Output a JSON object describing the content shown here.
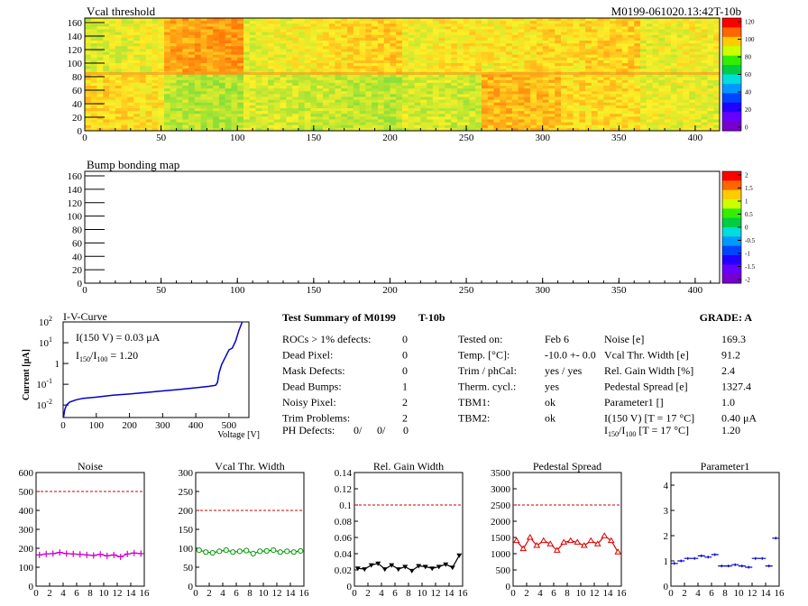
{
  "vcal_map": {
    "title": "Vcal threshold",
    "module_label": "M0199-061020.13:42T-10b",
    "x_ticks": [
      "0",
      "50",
      "100",
      "150",
      "200",
      "250",
      "300",
      "350",
      "400"
    ],
    "y_ticks": [
      "0",
      "20",
      "40",
      "60",
      "80",
      "100",
      "120",
      "140",
      "160"
    ],
    "colorbar_ticks": [
      "0",
      "20",
      "40",
      "60",
      "80",
      "100",
      "120"
    ]
  },
  "bump_map": {
    "title": "Bump bonding map",
    "x_ticks": [
      "0",
      "50",
      "100",
      "150",
      "200",
      "250",
      "300",
      "350",
      "400"
    ],
    "y_ticks": [
      "0",
      "20",
      "40",
      "60",
      "80",
      "100",
      "120",
      "140",
      "160"
    ],
    "colorbar_ticks": [
      "2",
      "1.5",
      "1",
      "0.5",
      "0",
      "-0.5",
      "-1",
      "-1.5",
      "-2"
    ]
  },
  "iv": {
    "title": "I-V-Curve",
    "ylabel": "Current [",
    "ylabel_mu": "μ",
    "ylabel_end": "A]",
    "xlabel": "Voltage [V]",
    "annot1": "I(150 V) = 0.03 μA",
    "annot2_a": "I",
    "annot2_sub1": "150",
    "annot2_b": "/I",
    "annot2_sub2": "100",
    "annot2_c": " =  1.20",
    "x_ticks": [
      "0",
      "100",
      "200",
      "300",
      "400",
      "500"
    ],
    "y_ticks_base": [
      "10",
      "10",
      "10",
      "10"
    ],
    "y_ticks_exp": [
      "2",
      "1",
      "-1",
      "-2"
    ],
    "y_tick_one": "1"
  },
  "summary": {
    "title": "Test Summary of M0199",
    "test": "T-10b",
    "grade": "GRADE:  A",
    "left_rows": [
      {
        "label": "ROCs > 1% defects:",
        "value": "0"
      },
      {
        "label": "Dead Pixel:",
        "value": "0"
      },
      {
        "label": "Mask Defects:",
        "value": "0"
      },
      {
        "label": "Dead Bumps:",
        "value": "1"
      },
      {
        "label": "Noisy Pixel:",
        "value": "2"
      },
      {
        "label": "Trim Problems:",
        "value": "2"
      }
    ],
    "ph_label": "PH Defects:",
    "ph_values": [
      "0/",
      "0/",
      "0"
    ],
    "ph_colors": [
      "#000000",
      "#ff0000",
      "#0000ff"
    ],
    "mid_rows": [
      {
        "label": "Tested on:",
        "value": "Feb 6"
      },
      {
        "label": "Temp. [°C]:",
        "value": "-10.0 +- 0.0"
      },
      {
        "label": "Trim / phCal:",
        "value": "yes / yes"
      },
      {
        "label": "Therm. cycl.:",
        "value": "yes"
      },
      {
        "label": "TBM1:",
        "value": "ok"
      },
      {
        "label": "TBM2:",
        "value": "ok"
      }
    ],
    "right_rows": [
      {
        "label": "Noise [e]",
        "value": "169.3"
      },
      {
        "label": "Vcal Thr. Width [e]",
        "value": "91.2"
      },
      {
        "label": "Rel. Gain Width [%]",
        "value": "2.4"
      },
      {
        "label": "Pedestal Spread [e]",
        "value": "1327.4"
      },
      {
        "label": "Parameter1 []",
        "value": "1.0"
      },
      {
        "label": "I(150 V) [T = 17 °C]",
        "value": "0.40 μA"
      }
    ],
    "ratio_label_a": "I",
    "ratio_sub1": "150",
    "ratio_label_b": "/I",
    "ratio_sub2": "100",
    "ratio_label_c": "  [T = 17 °C]",
    "ratio_value": "1.20"
  },
  "chart_data": [
    {
      "type": "line",
      "title": "Noise",
      "color": "#cc00cc",
      "marker": "cross",
      "x": [
        0,
        1,
        2,
        3,
        4,
        5,
        6,
        7,
        8,
        9,
        10,
        11,
        12,
        13,
        14,
        15
      ],
      "values": [
        165,
        170,
        172,
        178,
        172,
        170,
        168,
        165,
        162,
        168,
        160,
        165,
        155,
        170,
        175,
        172
      ],
      "ylim": [
        0,
        600
      ],
      "y_ticks": [
        "0",
        "100",
        "200",
        "300",
        "400",
        "500",
        "600"
      ],
      "x_ticks": [
        "0",
        "2",
        "4",
        "6",
        "8",
        "10",
        "12",
        "14",
        "16"
      ],
      "threshold": 500
    },
    {
      "type": "line",
      "title": "Vcal Thr. Width",
      "color": "#009900",
      "marker": "circle",
      "x": [
        0,
        1,
        2,
        3,
        4,
        5,
        6,
        7,
        8,
        9,
        10,
        11,
        12,
        13,
        14,
        15
      ],
      "values": [
        95,
        90,
        88,
        92,
        95,
        90,
        92,
        94,
        86,
        92,
        93,
        95,
        90,
        92,
        90,
        93
      ],
      "ylim": [
        0,
        300
      ],
      "y_ticks": [
        "0",
        "50",
        "100",
        "150",
        "200",
        "250",
        "300"
      ],
      "x_ticks": [
        "0",
        "2",
        "4",
        "6",
        "8",
        "10",
        "12",
        "14",
        "16"
      ],
      "threshold": 200
    },
    {
      "type": "line",
      "title": "Rel. Gain Width",
      "color": "#000000",
      "marker": "triangle-down",
      "x": [
        0,
        1,
        2,
        3,
        4,
        5,
        6,
        7,
        8,
        9,
        10,
        11,
        12,
        13,
        14,
        15
      ],
      "values": [
        0.022,
        0.021,
        0.026,
        0.028,
        0.021,
        0.026,
        0.021,
        0.024,
        0.019,
        0.025,
        0.024,
        0.022,
        0.024,
        0.027,
        0.023,
        0.038
      ],
      "ylim": [
        0,
        0.14
      ],
      "y_ticks": [
        "0",
        "0.02",
        "0.04",
        "0.06",
        "0.08",
        "0.1",
        "0.12",
        "0.14"
      ],
      "x_ticks": [
        "0",
        "2",
        "4",
        "6",
        "8",
        "10",
        "12",
        "14",
        "16"
      ],
      "threshold": 0.1
    },
    {
      "type": "line",
      "title": "Pedestal Spread",
      "color": "#dd0000",
      "marker": "triangle-up",
      "x": [
        0,
        1,
        2,
        3,
        4,
        5,
        6,
        7,
        8,
        9,
        10,
        11,
        12,
        13,
        14,
        15
      ],
      "values": [
        1400,
        1150,
        1500,
        1250,
        1400,
        1300,
        1100,
        1350,
        1400,
        1350,
        1250,
        1400,
        1300,
        1550,
        1400,
        1050
      ],
      "ylim": [
        0,
        3500
      ],
      "y_ticks": [
        "0",
        "500",
        "1000",
        "1500",
        "2000",
        "2500",
        "3000",
        "3500"
      ],
      "x_ticks": [
        "0",
        "2",
        "4",
        "6",
        "8",
        "10",
        "12",
        "14",
        "16"
      ],
      "threshold": 2500
    },
    {
      "type": "line",
      "title": "Parameter1",
      "color": "#0000cc",
      "marker": "hbar",
      "connect": false,
      "x": [
        0,
        1,
        2,
        3,
        4,
        5,
        6,
        7,
        8,
        9,
        10,
        11,
        12,
        13,
        14,
        15
      ],
      "values": [
        0.9,
        1.0,
        1.1,
        1.1,
        1.2,
        1.15,
        1.25,
        0.8,
        0.8,
        0.85,
        0.8,
        0.75,
        1.1,
        1.1,
        0.8,
        1.9
      ],
      "ylim": [
        0,
        4.5
      ],
      "y_ticks": [
        "0",
        "1",
        "2",
        "3",
        "4"
      ],
      "x_ticks": [
        "0",
        "2",
        "4",
        "6",
        "8",
        "10",
        "12",
        "14",
        "16"
      ],
      "threshold": null
    }
  ]
}
